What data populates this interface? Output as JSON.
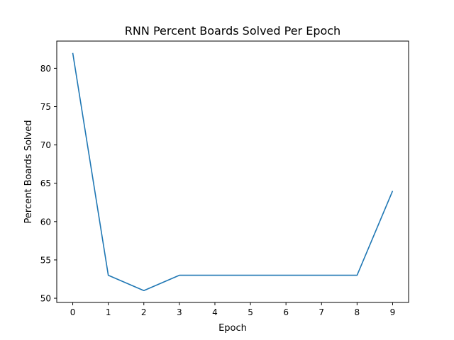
{
  "chart_data": {
    "type": "line",
    "title": "RNN Percent Boards Solved Per Epoch",
    "xlabel": "Epoch",
    "ylabel": "Percent Boards Solved",
    "x": [
      0,
      1,
      2,
      3,
      4,
      5,
      6,
      7,
      8,
      9
    ],
    "y": [
      82,
      53,
      51,
      53,
      53,
      53,
      53,
      53,
      53,
      64
    ],
    "xticks": [
      "0",
      "1",
      "2",
      "3",
      "4",
      "5",
      "6",
      "7",
      "8",
      "9"
    ],
    "yticks": [
      "50",
      "55",
      "60",
      "65",
      "70",
      "75",
      "80"
    ],
    "xlim": [
      -0.45,
      9.45
    ],
    "ylim": [
      49.45,
      83.55
    ],
    "grid": false,
    "line_color": "#1f77b4"
  }
}
